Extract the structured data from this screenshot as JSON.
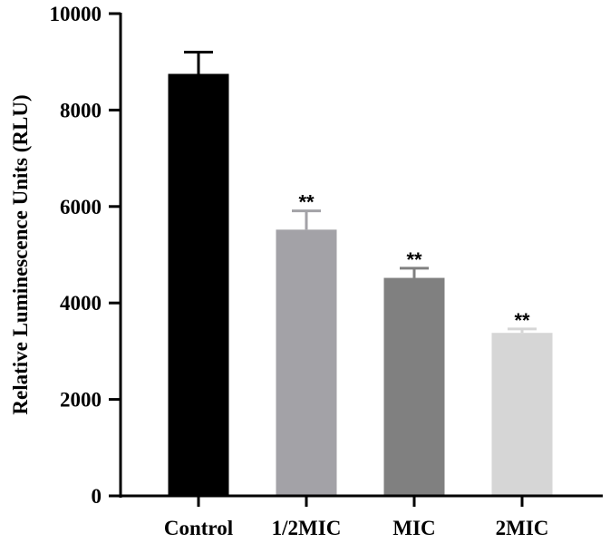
{
  "chart_data": {
    "type": "bar",
    "title": "",
    "xlabel": "",
    "ylabel": "Relative Luminescence Units (RLU)",
    "categories": [
      "Control",
      "1/2MIC",
      "MIC",
      "2MIC"
    ],
    "values": [
      8750,
      5520,
      4520,
      3380
    ],
    "error": [
      450,
      390,
      200,
      80
    ],
    "significance": [
      "",
      "**",
      "**",
      "**"
    ],
    "colors": [
      "#000000",
      "#a3a2a7",
      "#808080",
      "#d6d6d6"
    ],
    "ylim": [
      0,
      10000
    ],
    "yticks": [
      0,
      2000,
      4000,
      6000,
      8000,
      10000
    ],
    "grid": false,
    "legend": null
  }
}
